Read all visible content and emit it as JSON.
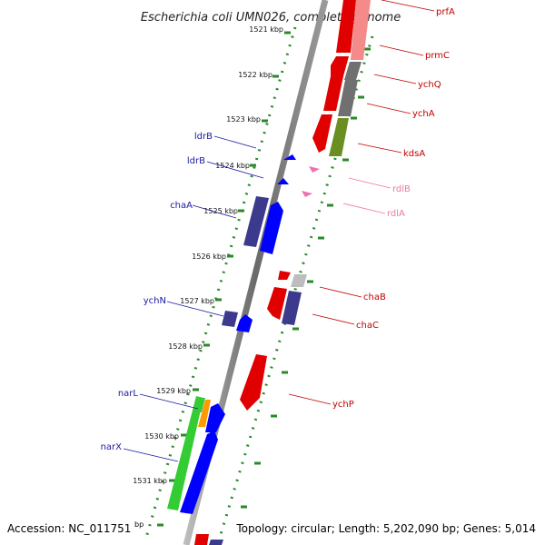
{
  "title": "Escherichia coli UMN026, complete genome",
  "ticks": [
    "1521 kbp",
    "1522 kbp",
    "1523 kbp",
    "1524 kbp",
    "1525 kbp",
    "1526 kbp",
    "1527 kbp",
    "1528 kbp",
    "1529 kbp",
    "1530 kbp",
    "1531 kbp"
  ],
  "genes_left": [
    "ldrB",
    "ldrB",
    "chaA",
    "ychN",
    "narL",
    "narX"
  ],
  "genes_right": [
    "prfA",
    "prmC",
    "ychQ",
    "ychA",
    "kdsA",
    "chaB",
    "chaC",
    "ychP"
  ],
  "genes_pink": [
    "rdlB",
    "rdlA"
  ],
  "footer": {
    "accession": "Accession: NC_011751",
    "bp": "bp",
    "summary": "Topology: circular; Length: 5,202,090 bp; Genes: 5,014"
  },
  "colors": {
    "red": "#ff0000",
    "blue": "#0000ff",
    "navy": "#3b3a8c",
    "green": "#33cc33",
    "olive": "#6b8e23",
    "gray": "#6e6e6e",
    "pink": "#f070b0",
    "orange": "#ff9900",
    "left_label": "#1a1aa0",
    "right_label": "#c00000",
    "tick_green": "#2a8a2a"
  }
}
